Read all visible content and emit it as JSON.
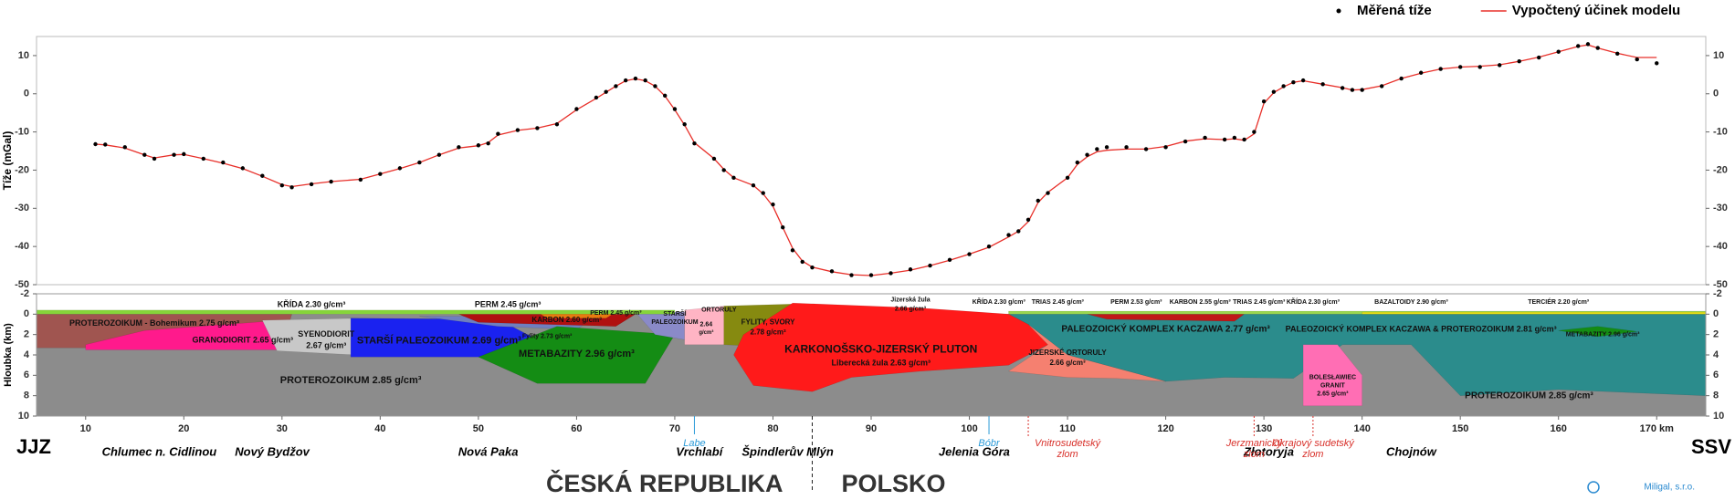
{
  "chart_data": [
    {
      "type": "line",
      "ylabel": "Tíže (mGal)",
      "x": [
        11,
        12,
        14,
        16,
        17,
        19,
        20,
        22,
        24,
        26,
        28,
        30,
        31,
        33,
        35,
        38,
        40,
        42,
        44,
        46,
        48,
        50,
        51,
        52,
        54,
        56,
        58,
        60,
        62,
        63,
        64,
        65,
        66,
        67,
        68,
        69,
        70,
        71,
        72,
        74,
        75,
        76,
        78,
        79,
        80,
        81,
        82,
        83,
        84,
        86,
        88,
        90,
        92,
        94,
        96,
        98,
        100,
        102,
        104,
        105,
        106,
        107,
        108,
        110,
        111,
        112,
        113,
        114,
        116,
        118,
        120,
        122,
        124,
        126,
        127,
        128,
        129,
        130,
        131,
        132,
        133,
        134,
        136,
        138,
        139,
        140,
        142,
        144,
        146,
        148,
        150,
        152,
        154,
        156,
        158,
        160,
        162,
        163,
        164,
        166,
        168,
        170
      ],
      "series": [
        {
          "name": "Měřená tíže",
          "color": "#000000",
          "marker": "dot",
          "values": [
            -13.2,
            -13.3,
            -14,
            -16,
            -17,
            -16,
            -15.8,
            -17,
            -18,
            -19.5,
            -21.5,
            -24,
            -24.5,
            -23.7,
            -23,
            -22.5,
            -21,
            -19.5,
            -18,
            -16,
            -14,
            -13.5,
            -13,
            -10.5,
            -9.5,
            -9,
            -8,
            -4,
            -1,
            0.5,
            2,
            3.5,
            4,
            3.5,
            2,
            -0.5,
            -4,
            -8,
            -13,
            -17,
            -20,
            -22,
            -24,
            -26,
            -29,
            -35,
            -41,
            -44,
            -45.5,
            -46.5,
            -47.5,
            -47.5,
            -47,
            -46,
            -45,
            -43.5,
            -42,
            -40,
            -37,
            -36,
            -33,
            -28,
            -26,
            -22,
            -18,
            -16,
            -14.5,
            -14,
            -14,
            -14.5,
            -14,
            -12.5,
            -11.5,
            -12,
            -11.5,
            -12,
            -10,
            -2,
            0.5,
            2,
            3,
            3.5,
            2.5,
            1.5,
            1,
            1,
            2,
            4,
            5.5,
            6.5,
            7,
            7,
            7.5,
            8.5,
            9.5,
            11,
            12.5,
            13,
            12,
            10.5,
            9,
            8
          ]
        },
        {
          "name": "Vypočtený účinek modelu",
          "color": "#e8302a",
          "values": [
            -13.2,
            -13.4,
            -14.2,
            -16,
            -16.8,
            -16,
            -15.9,
            -17,
            -18.2,
            -19.6,
            -21.6,
            -23.8,
            -24.3,
            -23.6,
            -23,
            -22.4,
            -21,
            -19.6,
            -18,
            -16,
            -14.2,
            -13.6,
            -12.8,
            -10.8,
            -9.6,
            -9,
            -7.8,
            -4.2,
            -1.2,
            0.4,
            2,
            3.4,
            3.9,
            3.4,
            2,
            -0.6,
            -4.2,
            -8.2,
            -12.8,
            -17,
            -19.8,
            -22,
            -24,
            -26.2,
            -29.5,
            -35,
            -40.5,
            -43.8,
            -45.4,
            -46.6,
            -47.4,
            -47.6,
            -47,
            -46.2,
            -45,
            -43.6,
            -42,
            -40.2,
            -37.5,
            -36,
            -33.5,
            -28.5,
            -25.8,
            -22,
            -18.5,
            -16.5,
            -15.2,
            -14.8,
            -14.5,
            -14.5,
            -13.8,
            -12.4,
            -11.8,
            -12,
            -11.8,
            -12.2,
            -10.5,
            -2.5,
            0.3,
            1.8,
            3,
            3.4,
            2.5,
            1.6,
            1,
            1.1,
            2.1,
            4,
            5.4,
            6.5,
            7,
            7.2,
            7.6,
            8.5,
            9.6,
            11,
            12.4,
            12.8,
            12,
            10.6,
            9.5,
            9.5
          ]
        }
      ],
      "xlim": [
        5,
        175
      ],
      "ylim": [
        -50,
        15
      ],
      "yticks": [
        -50,
        -40,
        -30,
        -20,
        -10,
        0,
        10
      ],
      "grid": false,
      "legend": "top-right"
    },
    {
      "type": "section",
      "ylabel": "Hloubka (km)",
      "xlim": [
        5,
        175
      ],
      "ylim": [
        -2,
        10
      ],
      "inverted": true,
      "yticks": [
        -2,
        0,
        2,
        4,
        6,
        8,
        10
      ],
      "xticks": [
        10,
        20,
        30,
        40,
        50,
        60,
        70,
        80,
        90,
        100,
        110,
        120,
        130,
        140,
        150,
        160,
        {
          "value": 170,
          "label": "170 km"
        }
      ],
      "units": [
        "KŘÍDA 2.30 g/cm³",
        "PERM 2.45 g/cm³",
        "PROTEROZOIKUM - Bohemikum 2.75 g/cm³",
        "GRANODIORIT 2.65 g/cm³",
        "SYENODIORIT",
        "2.67 g/cm³",
        "STARŠÍ  PALEOZOIKUM 2.69 g/cm³",
        "KARBON 2.60 g/cm³",
        "PERM 2.45 g/cm³",
        "Fylity 2.73 g/cm³",
        "STARŠÍ",
        "PALEOZOIKUM",
        "ORTORULY",
        "2.64",
        "g/cm³",
        "FYLITY, SVORY",
        "2.78 g/cm³",
        "METABAZITY 2.96 g/cm³",
        "PROTEROZOIKUM 2.85 g/cm³",
        "Jizerská žula",
        "2.66 g/cm³",
        "KARKONOŠSKO-JIZERSKÝ PLUTON",
        "Liberecká žula 2.63 g/cm³",
        "KŘÍDA 2.30 g/cm³",
        "TRIAS 2.45 g/cm³",
        "PERM 2.53 g/cm³",
        "KARBON 2.55 g/cm³",
        "TRIAS  2.45 g/cm³",
        "KŘÍDA 2.30 g/cm³",
        "BAZALTOIDY  2.90 g/cm³",
        "TERCIÉR 2.20 g/cm³",
        "PALEOZOICKÝ KOMPLEX KACZAWA  2.77 g/cm³",
        "JIZERSKÉ ORTORULY",
        "2.66 g/cm³",
        "PALEOZOICKÝ KOMPLEX KACZAWA & PROTEROZOIKUM 2.81 g/cm³",
        "METABAZITY 2.96 g/cm³",
        "BOLESŁAWIEC",
        "GRANIT",
        "2.65 g/cm³",
        "PROTEROZOIKUM 2.85 g/cm³"
      ],
      "directions": [
        "JJZ",
        "SSV"
      ],
      "places": [
        "Chlumec n. Cidlinou",
        "Nový Bydžov",
        "Nová Paka",
        "Vrchlabí",
        "Špindlerův Mlýn",
        "Jelenia Góra",
        "Złotoryja",
        "Chojnów"
      ],
      "rivers": [
        "Labe",
        "Bóbr"
      ],
      "faults": [
        [
          "Vnitrosudetský",
          "zlom"
        ],
        [
          "Jerzmanický",
          "zlom"
        ],
        [
          "Okrajový sudetský",
          "zlom"
        ]
      ],
      "countries": [
        "ČESKÁ REPUBLIKA",
        "POLSKO"
      ]
    }
  ],
  "credit": "Miligal, s.r.o."
}
